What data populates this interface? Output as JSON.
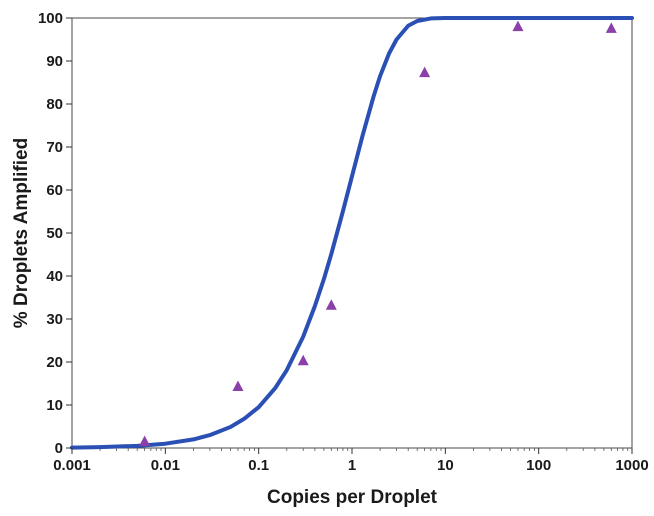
{
  "chart_data": {
    "type": "scatter",
    "title": "",
    "xlabel": "Copies per Droplet",
    "ylabel": "% Droplets Amplified",
    "x_scale": "log",
    "xlim": [
      0.001,
      1000
    ],
    "ylim": [
      0,
      100
    ],
    "x_ticks": [
      0.001,
      0.01,
      0.1,
      1,
      10,
      100,
      1000
    ],
    "x_tick_labels": [
      "0.001",
      "0.01",
      "0.1",
      "1",
      "10",
      "100",
      "1000"
    ],
    "y_ticks": [
      0,
      10,
      20,
      30,
      40,
      50,
      60,
      70,
      80,
      90,
      100
    ],
    "y_tick_labels": [
      "0",
      "10",
      "20",
      "30",
      "40",
      "50",
      "60",
      "70",
      "80",
      "90",
      "100"
    ],
    "grid": false,
    "legend": "none",
    "series": [
      {
        "kind": "scatter",
        "marker": "triangle",
        "color": "#8B3FA8",
        "points": [
          {
            "x": 0.006,
            "y": 1.5
          },
          {
            "x": 0.06,
            "y": 14.3
          },
          {
            "x": 0.3,
            "y": 20.3
          },
          {
            "x": 0.6,
            "y": 33.2
          },
          {
            "x": 6,
            "y": 87.3
          },
          {
            "x": 60,
            "y": 98.0
          },
          {
            "x": 600,
            "y": 97.6
          }
        ]
      },
      {
        "kind": "line",
        "color": "#2a4fb5",
        "points": [
          {
            "x": 0.001,
            "y": 0.1
          },
          {
            "x": 0.002,
            "y": 0.2
          },
          {
            "x": 0.005,
            "y": 0.5
          },
          {
            "x": 0.01,
            "y": 1.0
          },
          {
            "x": 0.02,
            "y": 2.0
          },
          {
            "x": 0.03,
            "y": 3.0
          },
          {
            "x": 0.05,
            "y": 4.9
          },
          {
            "x": 0.07,
            "y": 6.8
          },
          {
            "x": 0.1,
            "y": 9.5
          },
          {
            "x": 0.15,
            "y": 13.9
          },
          {
            "x": 0.2,
            "y": 18.1
          },
          {
            "x": 0.3,
            "y": 25.9
          },
          {
            "x": 0.4,
            "y": 33.0
          },
          {
            "x": 0.5,
            "y": 39.3
          },
          {
            "x": 0.6,
            "y": 45.1
          },
          {
            "x": 0.8,
            "y": 55.1
          },
          {
            "x": 1,
            "y": 63.2
          },
          {
            "x": 1.3,
            "y": 72.7
          },
          {
            "x": 1.7,
            "y": 81.7
          },
          {
            "x": 2,
            "y": 86.5
          },
          {
            "x": 2.5,
            "y": 91.8
          },
          {
            "x": 3,
            "y": 95.0
          },
          {
            "x": 4,
            "y": 98.2
          },
          {
            "x": 5,
            "y": 99.3
          },
          {
            "x": 7,
            "y": 99.9
          },
          {
            "x": 10,
            "y": 100
          },
          {
            "x": 100,
            "y": 100
          },
          {
            "x": 1000,
            "y": 100
          }
        ]
      }
    ]
  }
}
